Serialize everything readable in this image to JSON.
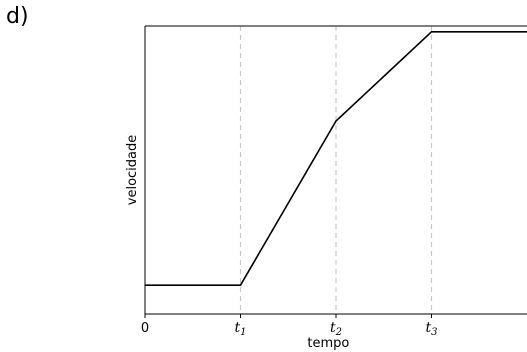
{
  "figure": {
    "label": "d)"
  },
  "chart_data": {
    "type": "line",
    "title": "",
    "xlabel": "tempo",
    "ylabel": "velocidade",
    "x_ticks": [
      {
        "value": 0,
        "label": "0",
        "base": "0",
        "sub": ""
      },
      {
        "value": 1,
        "label": "t1",
        "base": "t",
        "sub": "1"
      },
      {
        "value": 2,
        "label": "t2",
        "base": "t",
        "sub": "2"
      },
      {
        "value": 3,
        "label": "t3",
        "base": "t",
        "sub": "3"
      }
    ],
    "xlim": [
      0,
      4
    ],
    "ylim": [
      0,
      1
    ],
    "y_ticks": [],
    "reference_lines_x": [
      1,
      2,
      3
    ],
    "reference_line_style": "dashed",
    "grid": false,
    "legend": "none",
    "series": [
      {
        "x": [
          0,
          1,
          2,
          3,
          4
        ],
        "y": [
          0.1,
          0.1,
          0.67,
          0.98,
          0.98
        ]
      }
    ],
    "colors": {
      "line": "#000000",
      "reference": "#c8c8c8",
      "frame": "#000000"
    }
  }
}
